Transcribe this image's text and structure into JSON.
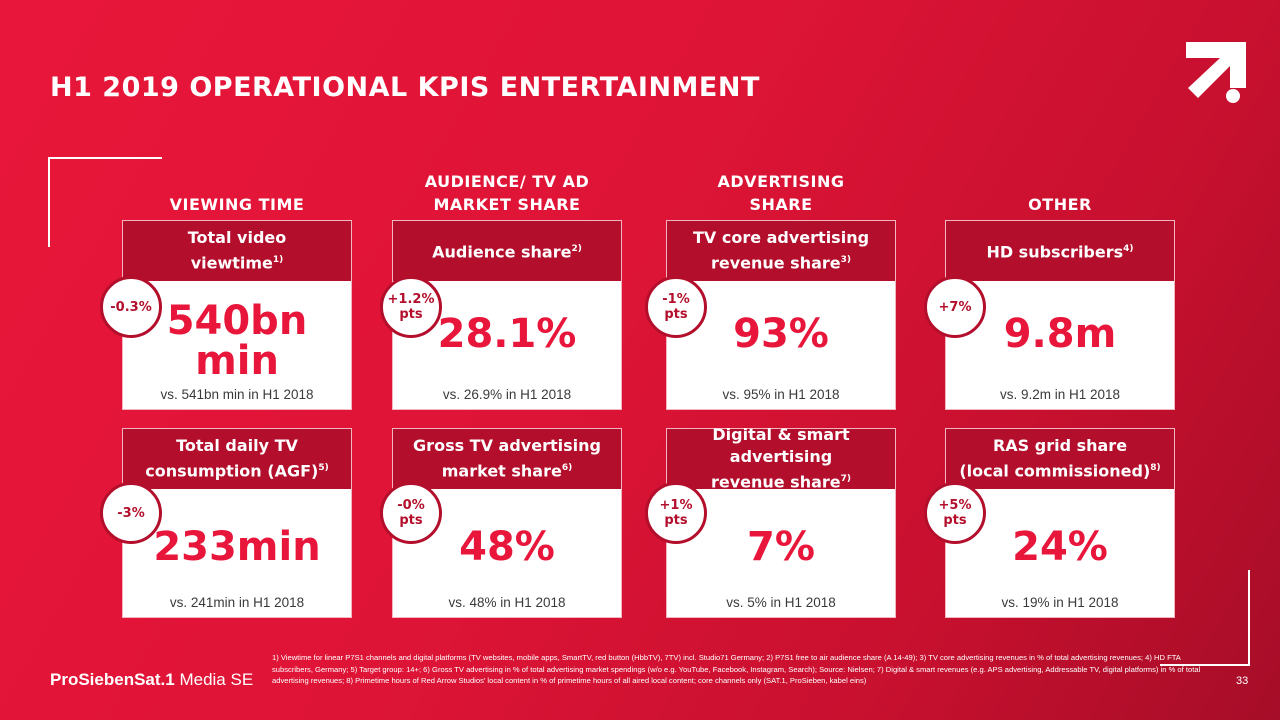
{
  "title": "H1 2019 OPERATIONAL KPIS ENTERTAINMENT",
  "categories": {
    "viewing": "VIEWING TIME",
    "audience_1": "AUDIENCE/ TV AD",
    "audience_2": "MARKET SHARE",
    "advertising_1": "ADVERTISING",
    "advertising_2": "SHARE",
    "other": "OTHER"
  },
  "cards": [
    {
      "head": "Total video",
      "head2": "viewtime",
      "sup": "1)",
      "value": "540bn",
      "value2": "min",
      "compare": "vs. 541bn min in H1 2018",
      "badge1": "-0.3%",
      "badge2": ""
    },
    {
      "head": "Audience share",
      "head2": "",
      "sup": "2)",
      "value": "28.1%",
      "value2": "",
      "compare": "vs. 26.9% in H1 2018",
      "badge1": "+1.2%",
      "badge2": "pts"
    },
    {
      "head": "TV core advertising",
      "head2": "revenue share",
      "sup": "3)",
      "value": "93%",
      "value2": "",
      "compare": "vs. 95% in H1 2018",
      "badge1": "-1%",
      "badge2": "pts"
    },
    {
      "head": "HD subscribers",
      "head2": "",
      "sup": "4)",
      "value": "9.8m",
      "value2": "",
      "compare": "vs. 9.2m in H1 2018",
      "badge1": "+7%",
      "badge2": ""
    },
    {
      "head": "Total daily TV",
      "head2": "consumption (AGF)",
      "sup": "5)",
      "value": "233min",
      "value2": "",
      "compare": "vs. 241min in H1 2018",
      "badge1": "-3%",
      "badge2": ""
    },
    {
      "head": "Gross TV advertising",
      "head2": "market share",
      "sup": "6)",
      "value": "48%",
      "value2": "",
      "compare": "vs. 48% in H1 2018",
      "badge1": "-0%",
      "badge2": "pts"
    },
    {
      "head": "Digital & smart advertising",
      "head2": "revenue share",
      "sup": "7)",
      "value": "7%",
      "value2": "",
      "compare": "vs. 5% in H1 2018",
      "badge1": "+1%",
      "badge2": "pts"
    },
    {
      "head": "RAS grid share",
      "head2": "(local commissioned)",
      "sup": "8)",
      "value": "24%",
      "value2": "",
      "compare": "vs. 19% in H1 2018",
      "badge1": "+5%",
      "badge2": "pts"
    }
  ],
  "brand": {
    "name": "ProSiebenSat.1",
    "suffix": "Media SE"
  },
  "footnote": "1) Viewtime for linear P7S1 channels and digital platforms (TV websites, mobile apps, SmartTV, red button (HbbTV), 7TV) incl. Studio71 Germany; 2) P7S1 free to air audience share (A 14-49); 3) TV core advertising revenues in % of total advertising revenues; 4) HD FTA subscribers, Germany; 5) Target group: 14+; 6) Gross TV advertising in % of total advertising market spendings (w/o e.g. YouTube, Facebook, Instagram, Search); Source: Nielsen; 7) Digital & smart revenues (e.g. APS advertising, Addressable TV, digital platforms) in % of total advertising revenues; 8) Primetime hours of Red Arrow Studios' local content in % of primetime hours of all aired local content; core channels only (SAT.1, ProSieben, kabel eins)",
  "page_number": "33",
  "colors": {
    "accent": "#e8163a",
    "dark_red": "#b30f2c",
    "background": "#de1436"
  }
}
